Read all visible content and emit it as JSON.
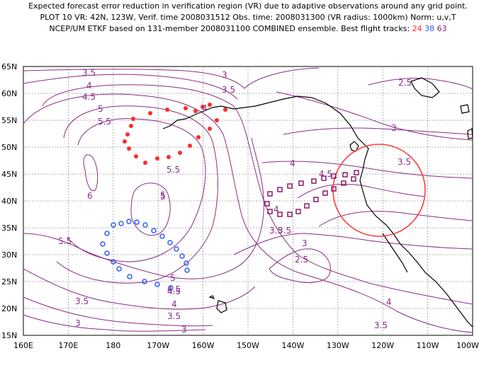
{
  "title": {
    "line1": "Expected forecast error reduction in verification region (VR) due to adaptive observations around any grid point.",
    "line2": "PLOT 10 VR: 42N, 123W, Verif. time 2008031512 Obs. time: 2008031300 (VR radius: 1000km) Norm: u,v,T",
    "line3_prefix": "NCEP/UM ETKF based on 131-member 2008031100 COMBINED ensemble.  Best flight tracks:",
    "track1": "24",
    "track2": "38",
    "track3": "63"
  },
  "axes": {
    "lat_labels": [
      "65N",
      "60N",
      "55N",
      "50N",
      "45N",
      "40N",
      "35N",
      "30N",
      "25N",
      "20N",
      "15N"
    ],
    "lon_labels": [
      "160E",
      "170E",
      "180",
      "170W",
      "160W",
      "150W",
      "140W",
      "130W",
      "120W",
      "110W",
      "100W"
    ]
  },
  "contour_labels": [
    "3.5",
    "3",
    "3.5",
    "2.5",
    "4",
    "4.5",
    "5",
    "5.5",
    "4",
    "3",
    "3.5",
    "4",
    "4.5",
    "5",
    "6",
    "5",
    "5.5",
    "3.5",
    "3",
    "2.5",
    "4",
    "4.5",
    "3.5",
    "5",
    "4.5",
    "4",
    "3.5",
    "3",
    "3",
    "3.5",
    "4",
    "5.5",
    "3.5"
  ],
  "colors": {
    "contour": "#8a2d85",
    "track24": "#ff2a2a",
    "track38": "#2f5cff",
    "track63": "#8a1c6a",
    "verif_circle": "#ff3b3b",
    "coast": "#000000"
  },
  "verification_region": {
    "center": "42N, 123W",
    "radius": "1000km"
  },
  "flight_tracks": [
    {
      "id": "24",
      "marker": "filled-circle",
      "color": "#ff2a2a"
    },
    {
      "id": "38",
      "marker": "open-hexagon",
      "color": "#2f5cff"
    },
    {
      "id": "63",
      "marker": "open-square",
      "color": "#8a1c6a"
    }
  ]
}
